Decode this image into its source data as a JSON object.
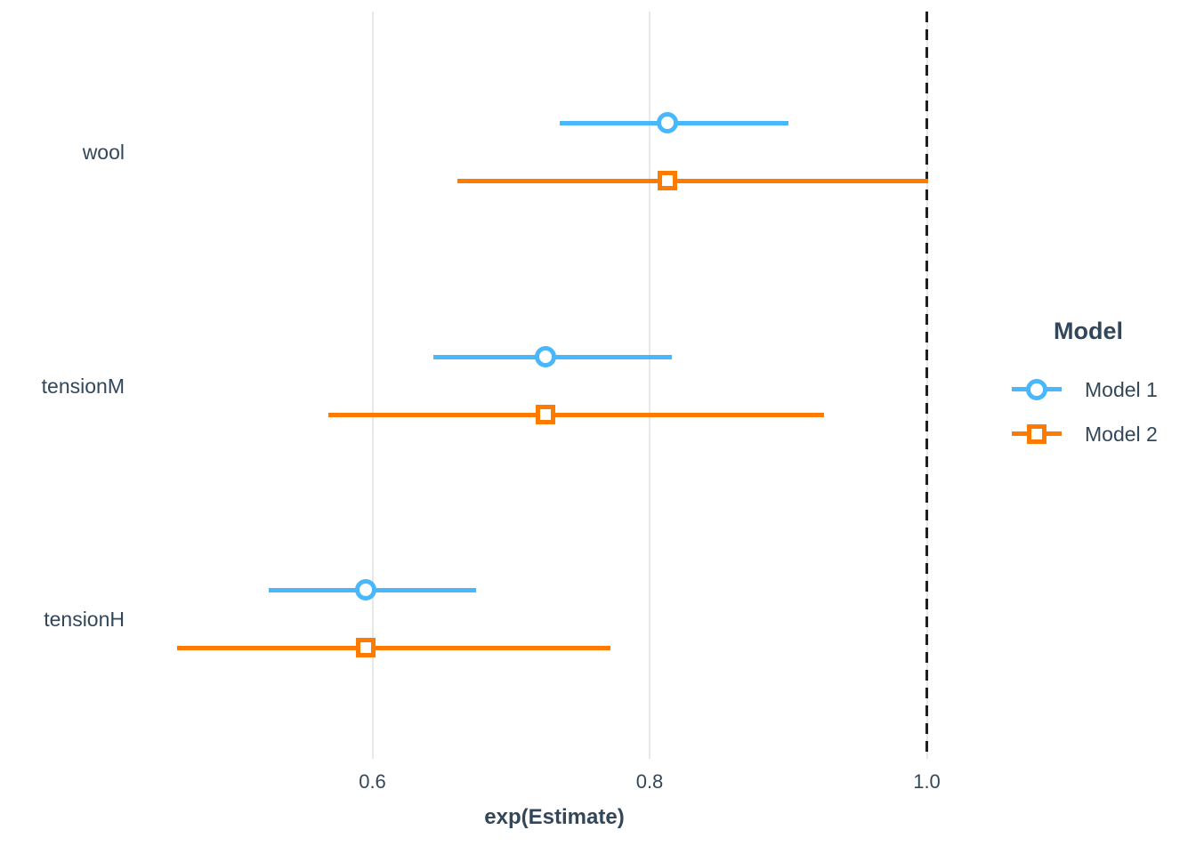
{
  "colors": {
    "model1_blue": "#49b7fc",
    "model2_orange": "#ff7b00",
    "reference_line": "#1f1f1f",
    "text": "#33475a",
    "gridline": "#e8e8e8",
    "background": "#ffffff"
  },
  "chart_data": {
    "type": "scatter",
    "variant": "forest_dot_whisker_coefficient_plot",
    "xlabel": "exp(Estimate)",
    "categories": [
      "wool",
      "tensionM",
      "tensionH"
    ],
    "x_ticks": [
      0.6,
      0.8,
      1.0
    ],
    "x_tick_labels": [
      "0.6",
      "0.8",
      "1.0"
    ],
    "xlim": [
      0.42,
      1.13
    ],
    "grid": "vertical major gridlines only, light gray on white",
    "reference_line": {
      "x": 1.0,
      "linetype": "dashed"
    },
    "legend": {
      "title": "Model",
      "position": "right"
    },
    "series": [
      {
        "name": "Model 1",
        "marker": "open-circle",
        "color": "#49b7fc",
        "points": [
          {
            "term": "wool",
            "estimate": 0.813,
            "ci_low": 0.735,
            "ci_high": 0.9
          },
          {
            "term": "tensionM",
            "estimate": 0.725,
            "ci_low": 0.644,
            "ci_high": 0.816
          },
          {
            "term": "tensionH",
            "estimate": 0.595,
            "ci_low": 0.525,
            "ci_high": 0.675
          }
        ]
      },
      {
        "name": "Model 2",
        "marker": "open-square",
        "color": "#ff7b00",
        "points": [
          {
            "term": "wool",
            "estimate": 0.813,
            "ci_low": 0.661,
            "ci_high": 1.001
          },
          {
            "term": "tensionM",
            "estimate": 0.725,
            "ci_low": 0.568,
            "ci_high": 0.926
          },
          {
            "term": "tensionH",
            "estimate": 0.595,
            "ci_low": 0.459,
            "ci_high": 0.772
          }
        ]
      }
    ]
  }
}
